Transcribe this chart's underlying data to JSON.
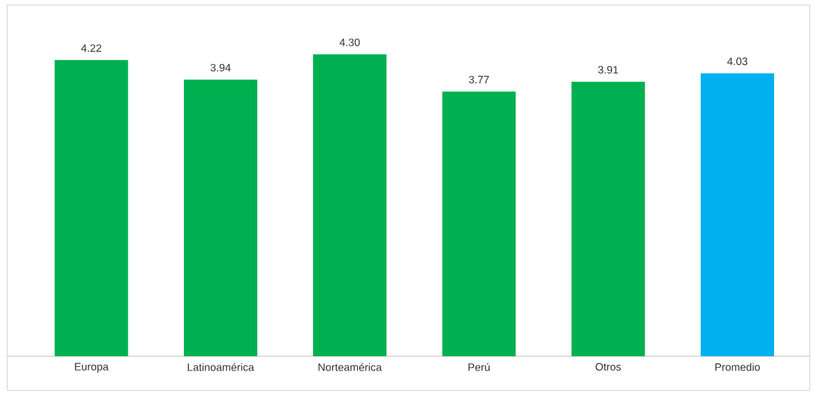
{
  "chart_data": {
    "type": "bar",
    "categories": [
      "Europa",
      "Latinoamérica",
      "Norteamérica",
      "Perú",
      "Otros",
      "Promedio"
    ],
    "values": [
      4.22,
      3.94,
      4.3,
      3.77,
      3.91,
      4.03
    ],
    "value_labels": [
      "4.22",
      "3.94",
      "4.30",
      "3.77",
      "3.91",
      "4.03"
    ],
    "colors": [
      "#00b050",
      "#00b050",
      "#00b050",
      "#00b050",
      "#00b050",
      "#00b0f0"
    ],
    "data_labels": true
  }
}
